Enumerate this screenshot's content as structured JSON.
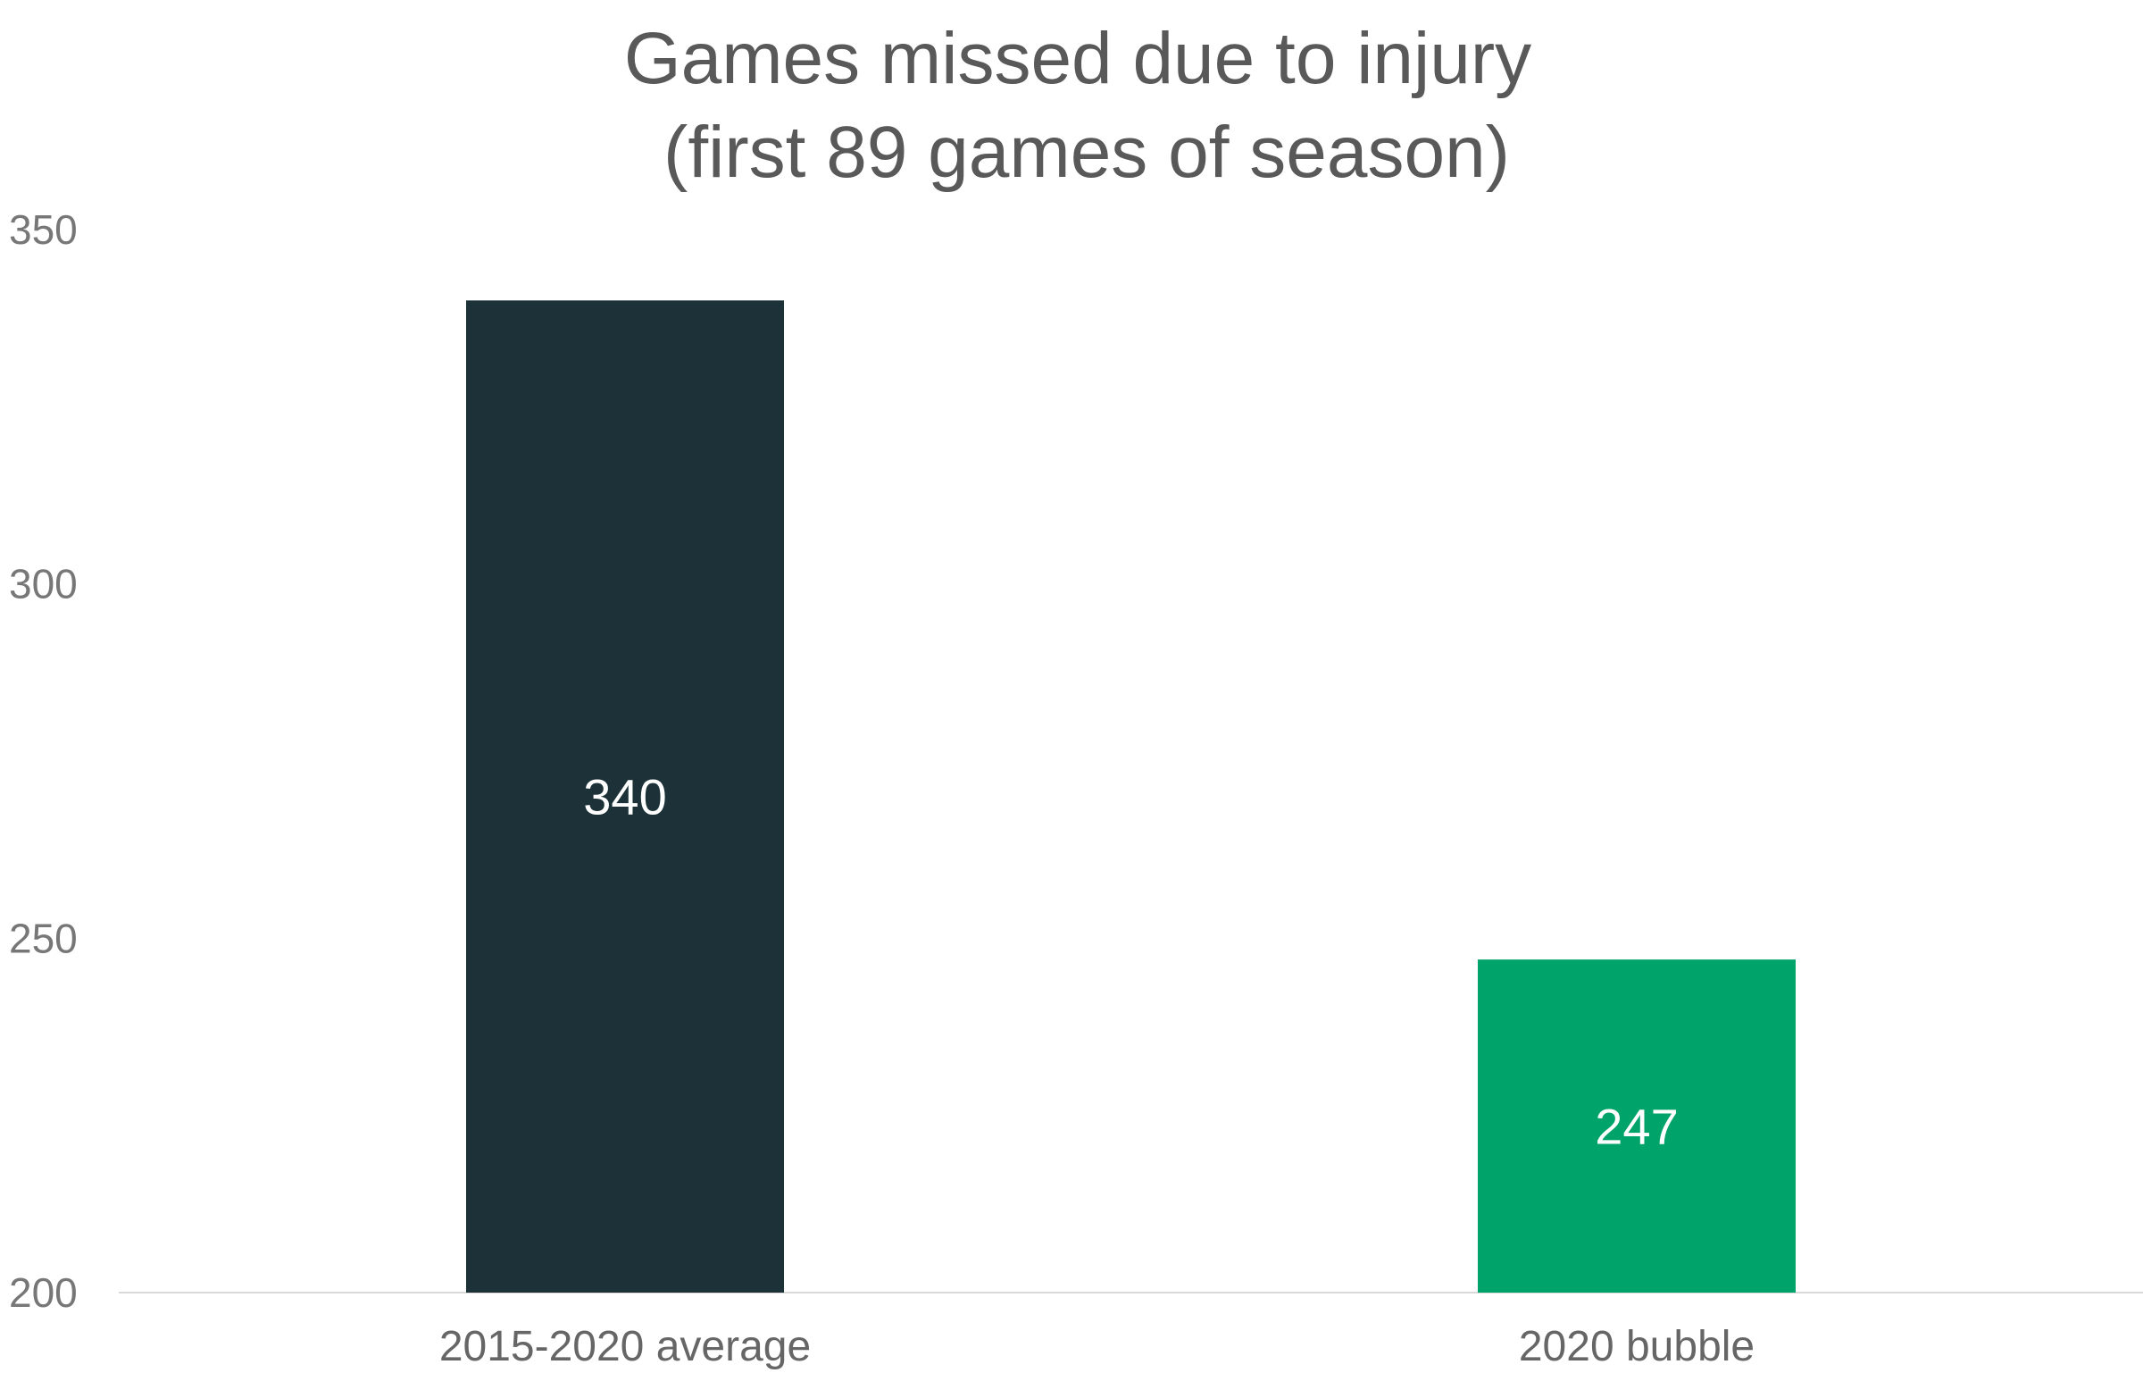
{
  "chart_data": {
    "type": "bar",
    "title": [
      "Games missed due to injury",
      "(first 89 games of season)"
    ],
    "xlabel": "",
    "ylabel": "",
    "categories": [
      "2015-2020 average",
      "2020 bubble"
    ],
    "values": [
      340,
      247
    ],
    "value_labels": [
      "340",
      "247"
    ],
    "bar_colors": [
      "#1c3238",
      "#00a36a"
    ],
    "ylim": [
      200,
      350
    ],
    "yticks": [
      200,
      250,
      300,
      350
    ],
    "ytick_labels": [
      "200",
      "250",
      "300",
      "350"
    ],
    "grid": false,
    "legend": "none",
    "baseline_color": "#d9d9d9"
  }
}
